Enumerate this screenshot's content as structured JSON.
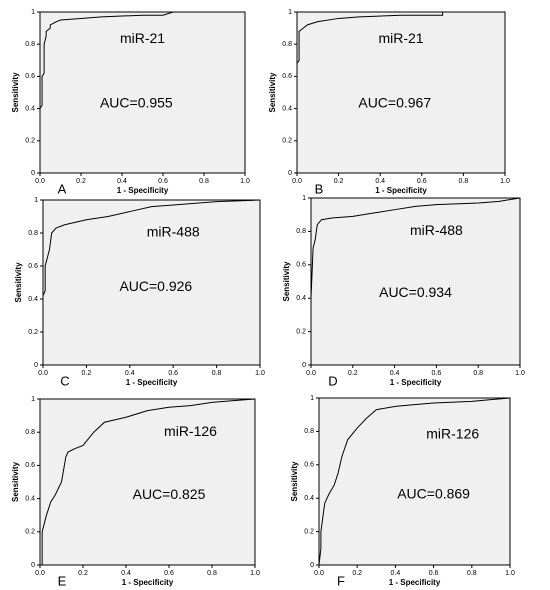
{
  "chart_data": [
    {
      "type": "line",
      "panel": "A",
      "xlabel": "1 - Specificity",
      "ylabel": "Sensitivity",
      "annotations": [
        "miR-21",
        "AUC=0.955"
      ],
      "xlim": [
        0,
        1
      ],
      "ylim": [
        0,
        1
      ],
      "xticks": [
        {
          "value": 0,
          "label": "0.0"
        },
        0.2,
        0.4,
        0.6,
        0.8,
        {
          "value": 1,
          "label": "1.0"
        }
      ],
      "yticks": [
        0,
        0.2,
        0.4,
        0.6,
        0.8,
        1
      ],
      "series": [
        {
          "color": "#000000",
          "x": [
            0,
            0,
            0.01,
            0.01,
            0.02,
            0.02,
            0.03,
            0.03,
            0.05,
            0.05,
            0.08,
            0.1,
            0.2,
            0.3,
            0.5,
            0.6,
            0.65,
            1
          ],
          "values": [
            0,
            0.4,
            0.42,
            0.6,
            0.62,
            0.8,
            0.85,
            0.88,
            0.9,
            0.92,
            0.94,
            0.95,
            0.96,
            0.97,
            0.98,
            0.98,
            1,
            1
          ]
        }
      ]
    },
    {
      "type": "line",
      "panel": "B",
      "xlabel": "1 - Specificity",
      "ylabel": "Sensitivity",
      "annotations": [
        "miR-21",
        "AUC=0.967"
      ],
      "xlim": [
        0,
        1
      ],
      "ylim": [
        0,
        1
      ],
      "xticks": [
        {
          "value": 0,
          "label": "0.0"
        },
        0.2,
        0.4,
        0.6,
        0.8,
        {
          "value": 1,
          "label": "1.0"
        }
      ],
      "yticks": [
        0,
        0.2,
        0.4,
        0.6,
        0.8,
        1
      ],
      "series": [
        {
          "color": "#000000",
          "x": [
            0,
            0,
            0.01,
            0.01,
            0.03,
            0.05,
            0.1,
            0.2,
            0.3,
            0.5,
            0.7,
            0.7,
            1
          ],
          "values": [
            0,
            0.68,
            0.7,
            0.88,
            0.9,
            0.92,
            0.94,
            0.96,
            0.97,
            0.98,
            0.98,
            1,
            1
          ]
        }
      ]
    },
    {
      "type": "line",
      "panel": "C",
      "xlabel": "1 - Specificity",
      "ylabel": "Sensitivity",
      "annotations": [
        "miR-488",
        "AUC=0.926"
      ],
      "xlim": [
        0,
        1
      ],
      "ylim": [
        0,
        1
      ],
      "xticks": [
        {
          "value": 0,
          "label": "0.0"
        },
        0.2,
        0.4,
        0.6,
        0.8,
        {
          "value": 1,
          "label": "1.0"
        }
      ],
      "yticks": [
        0,
        0.2,
        0.4,
        0.6,
        0.8,
        1
      ],
      "series": [
        {
          "color": "#000000",
          "x": [
            0,
            0,
            0.01,
            0.01,
            0.03,
            0.04,
            0.06,
            0.1,
            0.2,
            0.3,
            0.4,
            0.5,
            0.6,
            0.8,
            1
          ],
          "values": [
            0,
            0.42,
            0.45,
            0.6,
            0.7,
            0.8,
            0.83,
            0.85,
            0.88,
            0.9,
            0.93,
            0.96,
            0.97,
            0.99,
            1
          ]
        }
      ]
    },
    {
      "type": "line",
      "panel": "D",
      "xlabel": "1 - Specificity",
      "ylabel": "Sensitivity",
      "annotations": [
        "miR-488",
        "AUC=0.934"
      ],
      "xlim": [
        0,
        1
      ],
      "ylim": [
        0,
        1
      ],
      "xticks": [
        {
          "value": 0,
          "label": "0.0"
        },
        0.2,
        0.4,
        0.6,
        0.8,
        {
          "value": 1,
          "label": "1.0"
        }
      ],
      "yticks": [
        0,
        0.2,
        0.4,
        0.6,
        0.8,
        1
      ],
      "series": [
        {
          "color": "#000000",
          "x": [
            0,
            0,
            0.01,
            0.02,
            0.03,
            0.05,
            0.1,
            0.2,
            0.3,
            0.4,
            0.5,
            0.6,
            0.8,
            0.9,
            1
          ],
          "values": [
            0,
            0.4,
            0.7,
            0.75,
            0.84,
            0.87,
            0.88,
            0.89,
            0.91,
            0.93,
            0.95,
            0.96,
            0.97,
            0.98,
            1
          ]
        }
      ]
    },
    {
      "type": "line",
      "panel": "E",
      "xlabel": "1 - Specificity",
      "ylabel": "Sensitivity",
      "annotations": [
        "miR-126",
        "AUC=0.825"
      ],
      "xlim": [
        0,
        1
      ],
      "ylim": [
        0,
        1
      ],
      "xticks": [
        {
          "value": 0,
          "label": "0.0"
        },
        0.2,
        0.4,
        0.6,
        0.8,
        {
          "value": 1,
          "label": "1.0"
        }
      ],
      "yticks": [
        0,
        0.2,
        0.4,
        0.6,
        0.8,
        1
      ],
      "series": [
        {
          "color": "#000000",
          "x": [
            0,
            0.01,
            0.01,
            0.03,
            0.05,
            0.07,
            0.1,
            0.12,
            0.13,
            0.16,
            0.2,
            0.25,
            0.3,
            0.4,
            0.5,
            0.6,
            0.7,
            0.8,
            0.9,
            1
          ],
          "values": [
            0,
            0,
            0.2,
            0.3,
            0.38,
            0.42,
            0.5,
            0.65,
            0.68,
            0.7,
            0.72,
            0.8,
            0.86,
            0.89,
            0.93,
            0.95,
            0.96,
            0.98,
            0.99,
            1
          ]
        }
      ]
    },
    {
      "type": "line",
      "panel": "F",
      "xlabel": "1 - Specificity",
      "ylabel": "Sensitivity",
      "annotations": [
        "miR-126",
        "AUC=0.869"
      ],
      "xlim": [
        0,
        1
      ],
      "ylim": [
        0,
        1
      ],
      "xticks": [
        {
          "value": 0,
          "label": "0.0"
        },
        0.2,
        0.4,
        0.6,
        0.8,
        {
          "value": 1,
          "label": "1.0"
        }
      ],
      "yticks": [
        0,
        0.2,
        0.4,
        0.6,
        0.8,
        1
      ],
      "series": [
        {
          "color": "#000000",
          "x": [
            0,
            0.01,
            0.01,
            0.03,
            0.05,
            0.08,
            0.1,
            0.12,
            0.15,
            0.2,
            0.25,
            0.3,
            0.4,
            0.5,
            0.6,
            0.8,
            0.9,
            1
          ],
          "values": [
            0,
            0.1,
            0.2,
            0.37,
            0.42,
            0.48,
            0.55,
            0.65,
            0.75,
            0.82,
            0.88,
            0.93,
            0.95,
            0.96,
            0.97,
            0.98,
            0.99,
            1
          ]
        }
      ]
    }
  ]
}
